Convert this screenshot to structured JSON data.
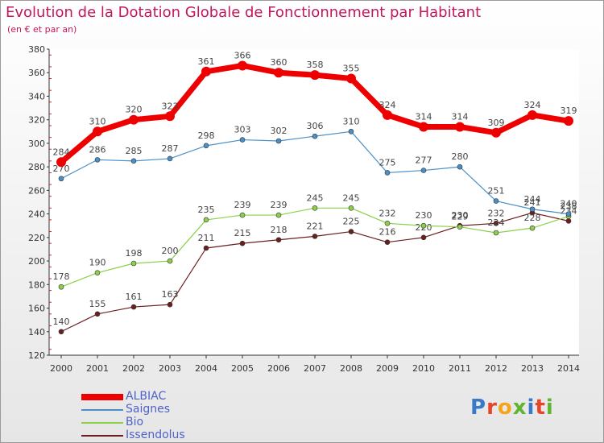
{
  "title": "Evolution de la Dotation Globale de Fonctionnement par Habitant",
  "subtitle": "(en € et par an)",
  "logo": {
    "text": "Proxiti",
    "colors": [
      "#3a79c8",
      "#e8432b",
      "#f4a51c",
      "#5fb530",
      "#3a79c8",
      "#e8432b",
      "#5fb530"
    ]
  },
  "chart_data": {
    "type": "line",
    "x": [
      "2000",
      "2001",
      "2002",
      "2003",
      "2004",
      "2005",
      "2006",
      "2007",
      "2008",
      "2009",
      "2010",
      "2011",
      "2012",
      "2013",
      "2014"
    ],
    "ylim": [
      120,
      380
    ],
    "yticks": [
      120,
      140,
      160,
      180,
      200,
      220,
      240,
      260,
      280,
      300,
      320,
      340,
      360,
      380
    ],
    "grid": false,
    "legend": "bottom-left",
    "series": [
      {
        "name": "ALBIAC",
        "color": "#ee0000",
        "values": [
          284,
          310,
          320,
          323,
          361,
          366,
          360,
          358,
          355,
          324,
          314,
          314,
          309,
          324,
          319
        ]
      },
      {
        "name": "Saignes",
        "color": "#4a90c8",
        "values": [
          270,
          286,
          285,
          287,
          298,
          303,
          302,
          306,
          310,
          275,
          277,
          280,
          251,
          244,
          240
        ]
      },
      {
        "name": "Bio",
        "color": "#8ccf4a",
        "values": [
          178,
          190,
          198,
          200,
          235,
          239,
          239,
          245,
          245,
          232,
          230,
          229,
          224,
          228,
          238
        ]
      },
      {
        "name": "Issendolus",
        "color": "#6b1e1e",
        "values": [
          140,
          155,
          161,
          163,
          211,
          215,
          218,
          221,
          225,
          216,
          220,
          230,
          232,
          241,
          234
        ]
      }
    ]
  }
}
